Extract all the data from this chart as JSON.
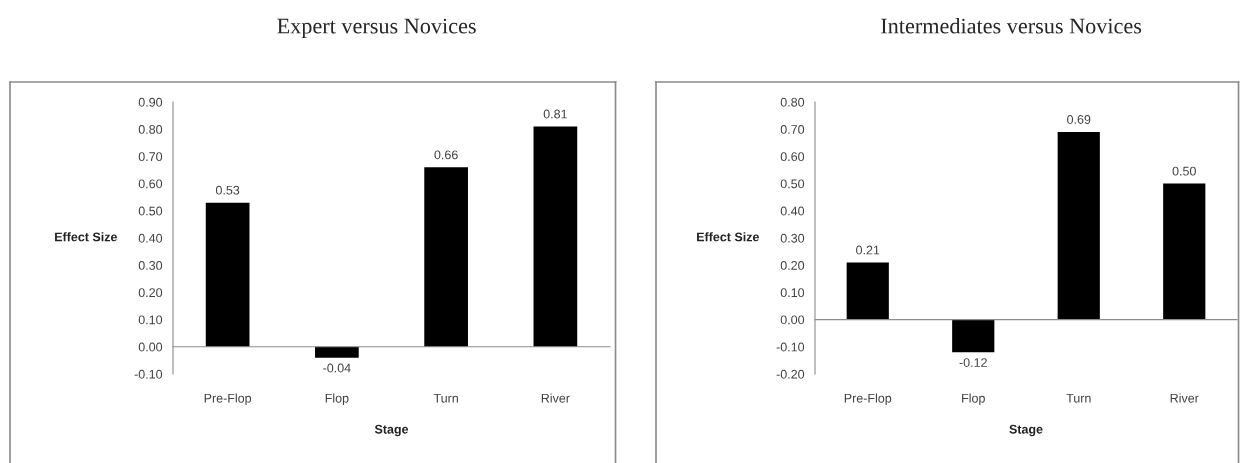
{
  "chart_data": [
    {
      "type": "bar",
      "title": "Expert versus Novices",
      "xlabel": "Stage",
      "ylabel": "Effect Size",
      "categories": [
        "Pre-Flop",
        "Flop",
        "Turn",
        "River"
      ],
      "values": [
        0.53,
        -0.04,
        0.66,
        0.81
      ],
      "color": "#000000",
      "value_labels": [
        "0.53",
        "-0.04",
        "0.66",
        "0.81"
      ],
      "ylim": [
        -0.1,
        0.9
      ],
      "yticks": [
        {
          "value": -0.1,
          "label": "-0.10"
        },
        {
          "value": 0,
          "label": "0.00"
        },
        {
          "value": 0.1,
          "label": "0.10"
        },
        {
          "value": 0.2,
          "label": "0.20"
        },
        {
          "value": 0.3,
          "label": "0.30"
        },
        {
          "value": 0.4,
          "label": "0.40"
        },
        {
          "value": 0.5,
          "label": "0.50"
        },
        {
          "value": 0.6,
          "label": "0.60"
        },
        {
          "value": 0.7,
          "label": "0.70"
        },
        {
          "value": 0.8,
          "label": "0.80"
        },
        {
          "value": 0.9,
          "label": "0.90"
        }
      ],
      "legend": false
    },
    {
      "type": "bar",
      "title": "Intermediates versus Novices",
      "xlabel": "Stage",
      "ylabel": "Effect Size",
      "categories": [
        "Pre-Flop",
        "Flop",
        "Turn",
        "River"
      ],
      "values": [
        0.21,
        -0.12,
        0.69,
        0.5
      ],
      "color": "#000000",
      "value_labels": [
        "0.21",
        "-0.12",
        "0.69",
        "0.50"
      ],
      "ylim": [
        -0.2,
        0.8
      ],
      "yticks": [
        {
          "value": -0.2,
          "label": "-0.20"
        },
        {
          "value": -0.1,
          "label": "-0.10"
        },
        {
          "value": 0,
          "label": "0.00"
        },
        {
          "value": 0.1,
          "label": "0.10"
        },
        {
          "value": 0.2,
          "label": "0.20"
        },
        {
          "value": 0.3,
          "label": "0.30"
        },
        {
          "value": 0.4,
          "label": "0.40"
        },
        {
          "value": 0.5,
          "label": "0.50"
        },
        {
          "value": 0.6,
          "label": "0.60"
        },
        {
          "value": 0.7,
          "label": "0.70"
        },
        {
          "value": 0.8,
          "label": "0.80"
        }
      ],
      "legend": false
    }
  ]
}
